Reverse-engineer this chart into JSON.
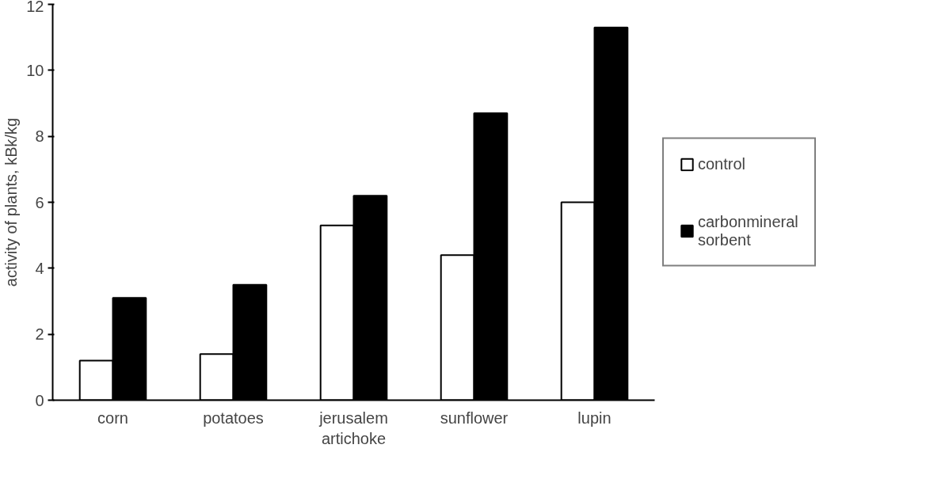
{
  "chart_data": {
    "type": "bar",
    "ylabel": "activity of plants, kBk/kg",
    "categories": [
      "corn",
      "potatoes",
      "jerusalem artichoke",
      "sunflower",
      "lupin"
    ],
    "series": [
      {
        "name": "control",
        "color": "#ffffff",
        "values": [
          1.2,
          1.4,
          5.3,
          4.4,
          6.0
        ]
      },
      {
        "name": "carbonmineral sorbent",
        "color": "#000000",
        "values": [
          3.1,
          3.5,
          6.2,
          8.7,
          11.3
        ]
      }
    ],
    "ylim": [
      0,
      12
    ],
    "yticks": [
      0,
      2,
      4,
      6,
      8,
      10,
      12
    ],
    "grid": false,
    "legend": "right"
  }
}
